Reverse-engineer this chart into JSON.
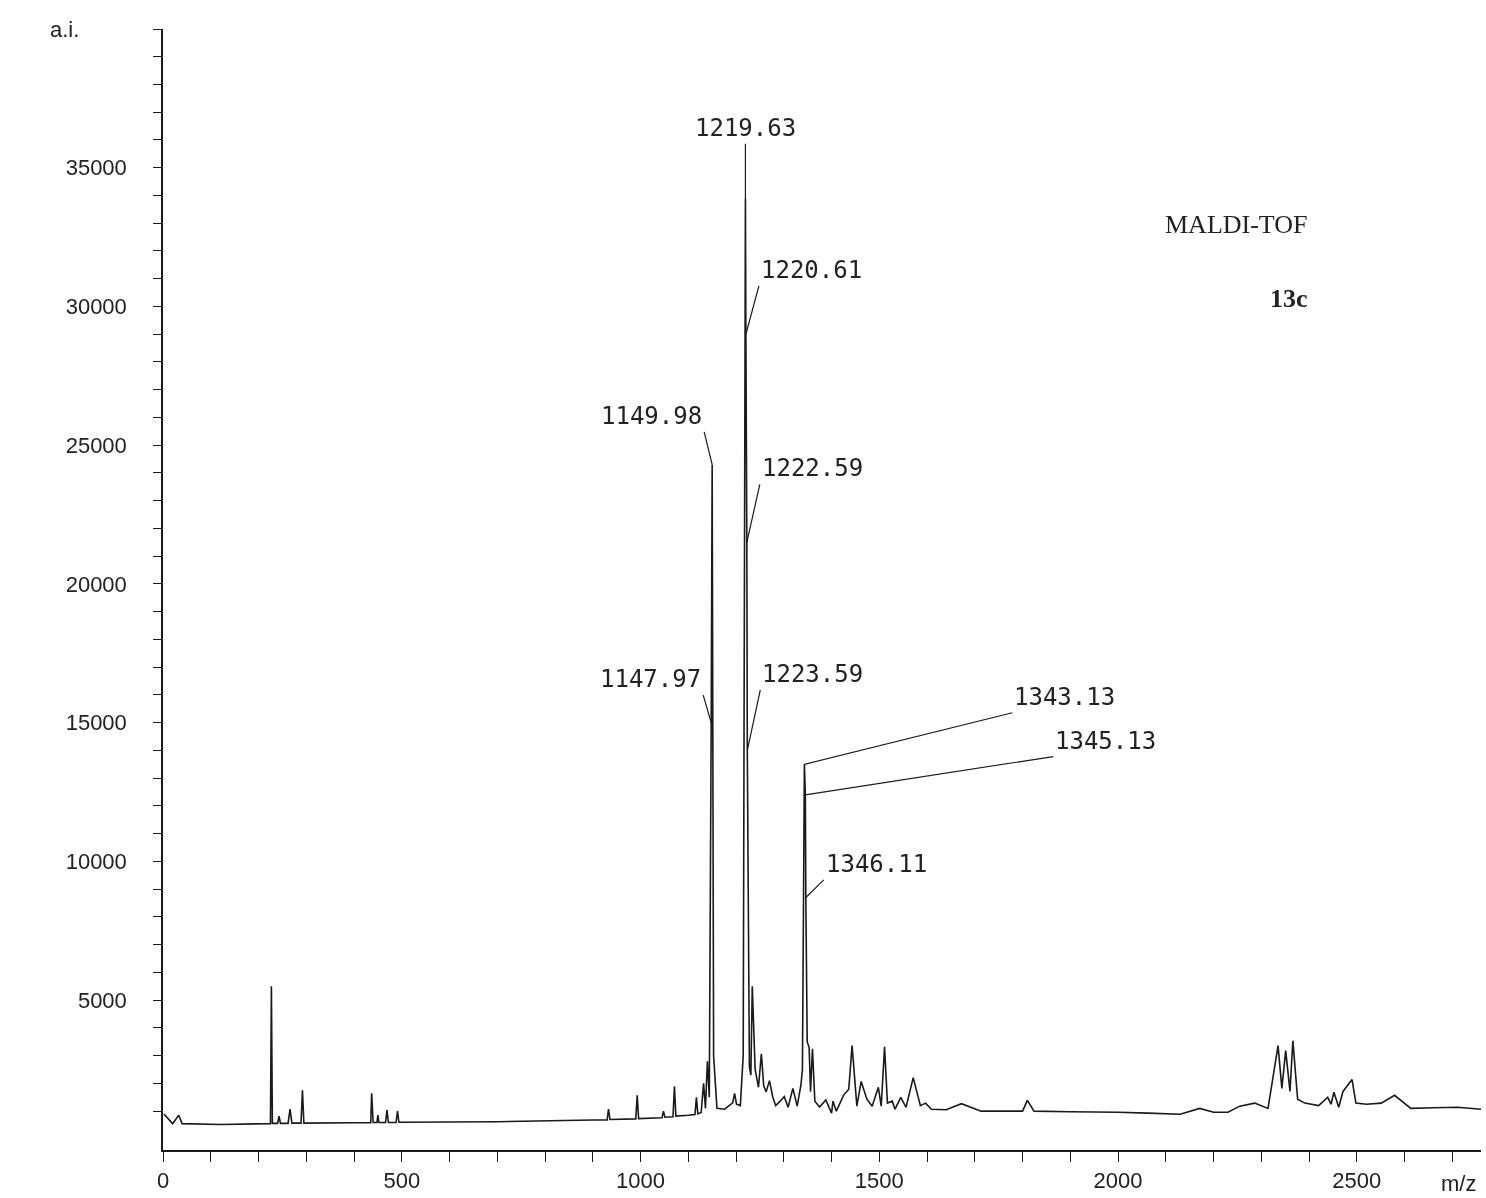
{
  "chart_data": {
    "type": "line",
    "xlabel": "m/z",
    "ylabel": "a.i.",
    "xlim": [
      0,
      2760
    ],
    "ylim": [
      -400,
      40000
    ],
    "xticks": [
      0,
      {
        "value": 100,
        "label": null
      },
      {
        "value": 200,
        "label": null
      },
      {
        "value": 300,
        "label": null
      },
      {
        "value": 400,
        "label": null
      },
      500,
      {
        "value": 600,
        "label": null
      },
      {
        "value": 700,
        "label": null
      },
      {
        "value": 800,
        "label": null
      },
      {
        "value": 900,
        "label": null
      },
      1000,
      {
        "value": 1100,
        "label": null
      },
      {
        "value": 1200,
        "label": null
      },
      {
        "value": 1300,
        "label": null
      },
      {
        "value": 1400,
        "label": null
      },
      1500,
      {
        "value": 1600,
        "label": null
      },
      {
        "value": 1700,
        "label": null
      },
      {
        "value": 1800,
        "label": null
      },
      {
        "value": 1900,
        "label": null
      },
      2000,
      {
        "value": 2100,
        "label": null
      },
      {
        "value": 2200,
        "label": null
      },
      {
        "value": 2300,
        "label": null
      },
      {
        "value": 2400,
        "label": null
      },
      2500,
      {
        "value": 2600,
        "label": null
      },
      {
        "value": 2700,
        "label": null
      }
    ],
    "yticks": [
      {
        "value": 1000,
        "label": null
      },
      {
        "value": 2000,
        "label": null
      },
      {
        "value": 3000,
        "label": null
      },
      {
        "value": 4000,
        "label": null
      },
      5000,
      {
        "value": 6000,
        "label": null
      },
      {
        "value": 7000,
        "label": null
      },
      {
        "value": 8000,
        "label": null
      },
      {
        "value": 9000,
        "label": null
      },
      10000,
      {
        "value": 11000,
        "label": null
      },
      {
        "value": 12000,
        "label": null
      },
      {
        "value": 13000,
        "label": null
      },
      {
        "value": 14000,
        "label": null
      },
      15000,
      {
        "value": 16000,
        "label": null
      },
      {
        "value": 17000,
        "label": null
      },
      {
        "value": 18000,
        "label": null
      },
      {
        "value": 19000,
        "label": null
      },
      20000,
      {
        "value": 21000,
        "label": null
      },
      {
        "value": 22000,
        "label": null
      },
      {
        "value": 23000,
        "label": null
      },
      {
        "value": 24000,
        "label": null
      },
      25000,
      {
        "value": 26000,
        "label": null
      },
      {
        "value": 27000,
        "label": null
      },
      {
        "value": 28000,
        "label": null
      },
      {
        "value": 29000,
        "label": null
      },
      30000,
      {
        "value": 31000,
        "label": null
      },
      {
        "value": 32000,
        "label": null
      },
      {
        "value": 33000,
        "label": null
      },
      {
        "value": 34000,
        "label": null
      },
      35000,
      {
        "value": 36000,
        "label": null
      },
      {
        "value": 37000,
        "label": null
      },
      {
        "value": 38000,
        "label": null
      },
      {
        "value": 39000,
        "label": null
      },
      {
        "value": 40000,
        "label": null
      }
    ],
    "marker": "none",
    "line_style": "solid",
    "series": [
      {
        "color": "#1a1a1a",
        "x": [
          2,
          20,
          33,
          40,
          120,
          225,
          227,
          229,
          240,
          243,
          246,
          262,
          266,
          270,
          289,
          292,
          295,
          400,
          435,
          437,
          440,
          448,
          450,
          452,
          466,
          469,
          472,
          488,
          491,
          494,
          700,
          900,
          930,
          933,
          936,
          990,
          993,
          996,
          1045,
          1048,
          1051,
          1068,
          1071,
          1074,
          1100,
          1114,
          1117,
          1120,
          1127,
          1132,
          1136,
          1140,
          1144,
          1147.97,
          1149.98,
          1153,
          1160,
          1176,
          1193,
          1197,
          1201,
          1209,
          1215,
          1219.63,
          1220.61,
          1222.59,
          1223.59,
          1228,
          1231,
          1234,
          1240,
          1247,
          1253,
          1258,
          1263,
          1270,
          1277,
          1283,
          1292,
          1301,
          1309,
          1319,
          1328,
          1336,
          1339,
          1343.13,
          1345.13,
          1346.11,
          1349,
          1353,
          1356,
          1360,
          1365,
          1375,
          1388,
          1400,
          1403,
          1410,
          1425,
          1436,
          1443,
          1453,
          1462,
          1474,
          1485,
          1498,
          1504,
          1511,
          1517,
          1527,
          1533,
          1545,
          1556,
          1571,
          1586,
          1597,
          1609,
          1640,
          1672,
          1713,
          1760,
          1800,
          1810,
          1824,
          1900,
          2000,
          2063,
          2130,
          2171,
          2200,
          2230,
          2255,
          2286,
          2314,
          2335,
          2343,
          2351,
          2360,
          2366,
          2376,
          2391,
          2420,
          2439,
          2446,
          2452,
          2462,
          2471,
          2490,
          2498,
          2520,
          2551,
          2579,
          2613,
          2660,
          2711,
          2760
        ],
        "values": [
          900,
          550,
          850,
          550,
          520,
          550,
          5500,
          560,
          560,
          820,
          560,
          560,
          1070,
          570,
          570,
          1750,
          570,
          580,
          580,
          1640,
          590,
          590,
          860,
          590,
          590,
          1040,
          590,
          590,
          1000,
          600,
          620,
          680,
          680,
          1070,
          700,
          720,
          1570,
          730,
          760,
          1000,
          780,
          800,
          1900,
          820,
          850,
          880,
          1500,
          900,
          950,
          2000,
          1100,
          2800,
          1500,
          15000,
          24300,
          3000,
          1100,
          1070,
          1300,
          1640,
          1250,
          1200,
          3000,
          33900,
          29000,
          21500,
          14000,
          2600,
          2300,
          5500,
          2500,
          1860,
          3070,
          1900,
          1700,
          2100,
          1500,
          1200,
          1350,
          1530,
          1140,
          1820,
          1180,
          1960,
          2500,
          13500,
          12400,
          8700,
          3500,
          3300,
          1700,
          3250,
          1360,
          1150,
          1400,
          930,
          1360,
          1000,
          1570,
          1790,
          3360,
          1180,
          2070,
          1430,
          1180,
          1860,
          1180,
          3320,
          1290,
          1360,
          1070,
          1500,
          1140,
          2210,
          1200,
          1290,
          1070,
          1050,
          1270,
          1000,
          1000,
          1000,
          1390,
          1000,
          980,
          960,
          930,
          890,
          1100,
          960,
          960,
          1180,
          1290,
          1100,
          3360,
          1820,
          3180,
          1710,
          3540,
          1430,
          1290,
          1200,
          1500,
          1250,
          1680,
          1140,
          1710,
          2140,
          1290,
          1250,
          1290,
          1570,
          1100,
          1120,
          1140,
          1070
        ]
      }
    ],
    "annotations": [
      {
        "text": "1149.98",
        "x": 1149.98,
        "y": 24300
      },
      {
        "text": "1147.97",
        "x": 1147.97,
        "y": 15000
      },
      {
        "text": "1219.63",
        "x": 1219.63,
        "y": 33900
      },
      {
        "text": "1220.61",
        "x": 1220.61,
        "y": 29000
      },
      {
        "text": "1222.59",
        "x": 1222.59,
        "y": 21500
      },
      {
        "text": "1223.59",
        "x": 1223.59,
        "y": 14000
      },
      {
        "text": "1343.13",
        "x": 1343.13,
        "y": 13500
      },
      {
        "text": "1345.13",
        "x": 1345.13,
        "y": 12400
      },
      {
        "text": "1346.11",
        "x": 1346.11,
        "y": 8700
      },
      "MALDI-TOF",
      "13c"
    ]
  }
}
